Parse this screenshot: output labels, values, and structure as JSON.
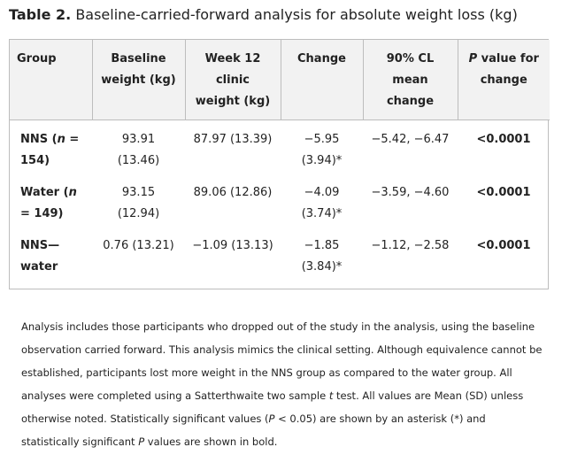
{
  "caption": {
    "label": "Table 2.",
    "title": "Baseline-carried-forward analysis for absolute weight loss (kg)"
  },
  "table": {
    "headers": [
      [
        "Group"
      ],
      [
        "Baseline",
        "weight (kg)"
      ],
      [
        "Week 12 clinic",
        "weight (kg)"
      ],
      [
        "Change"
      ],
      [
        "90% CL",
        "mean",
        "change"
      ],
      [
        "P value for",
        "change"
      ]
    ],
    "rows": [
      {
        "group": [
          "NNS (n =",
          "154)"
        ],
        "baseline": [
          "93.91",
          "(13.46)"
        ],
        "week12": [
          "87.97 (13.39)"
        ],
        "change": [
          "−5.95",
          "(3.94)*"
        ],
        "cl": [
          "−5.42, −6.47"
        ],
        "p": [
          "<0.0001"
        ]
      },
      {
        "group": [
          "Water (n",
          "= 149)"
        ],
        "baseline": [
          "93.15",
          "(12.94)"
        ],
        "week12": [
          "89.06 (12.86)"
        ],
        "change": [
          "−4.09",
          "(3.74)*"
        ],
        "cl": [
          "−3.59, −4.60"
        ],
        "p": [
          "<0.0001"
        ]
      },
      {
        "group": [
          "NNS—",
          "water"
        ],
        "baseline": [
          "0.76 (13.21)"
        ],
        "week12": [
          "−1.09 (13.13)"
        ],
        "change": [
          "−1.85",
          "(3.84)*"
        ],
        "cl": [
          "−1.12, −2.58"
        ],
        "p": [
          "<0.0001"
        ]
      }
    ]
  },
  "footnote": "Analysis includes those participants who dropped out of the study in the analysis, using the baseline observation carried forward. This analysis mimics the clinical setting. Although equivalence cannot be established, participants lost more weight in the NNS group as compared to the water group. All analyses were completed using a Satterthwaite two sample t test. All values are Mean (SD) unless otherwise noted. Statistically significant values (P < 0.05) are shown by an asterisk (*) and statistically significant P values are shown in bold.",
  "colors": {
    "header_bg": "#f2f2f2",
    "border": "#bdbdbd",
    "text": "#222222"
  }
}
